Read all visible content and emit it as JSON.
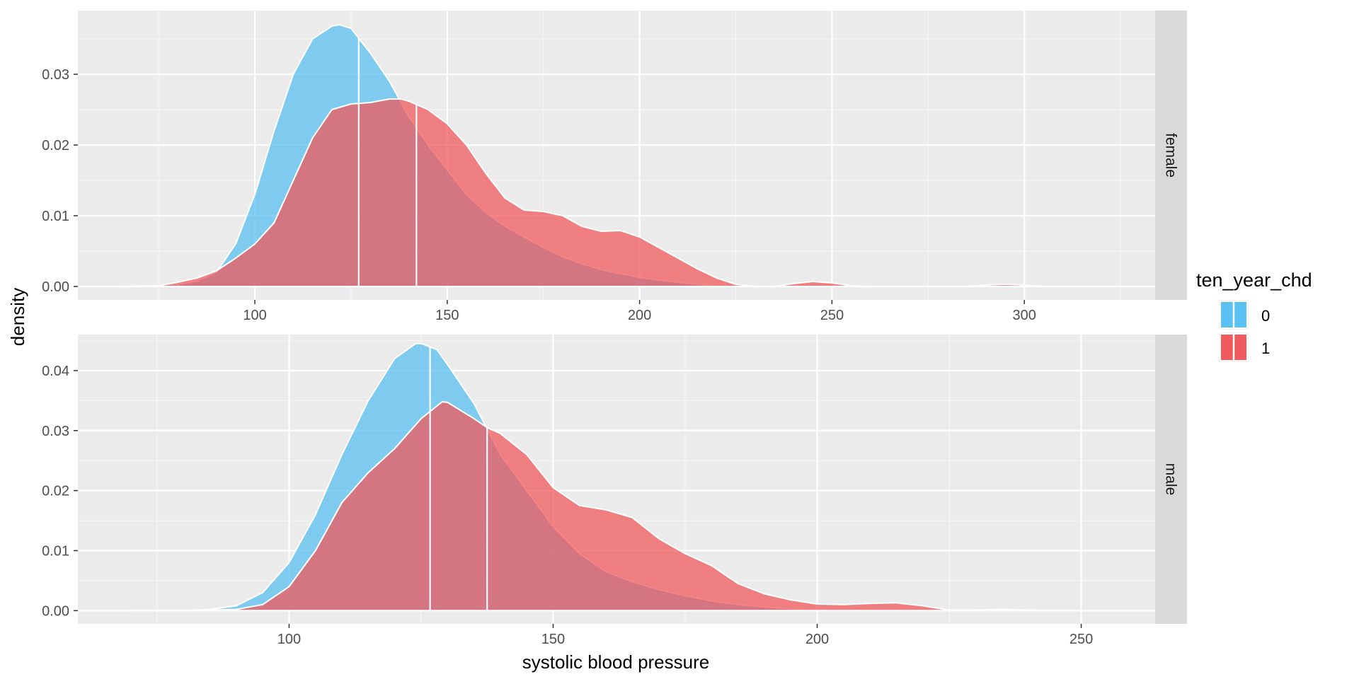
{
  "chart_data": {
    "type": "area",
    "xlabel": "systolic blood pressure",
    "ylabel": "density",
    "grid": true,
    "legend": {
      "title": "ten_year_chd",
      "position": "right",
      "entries": [
        {
          "label": "0",
          "color": "#5BC0F2"
        },
        {
          "label": "1",
          "color": "#F05A5E"
        }
      ]
    },
    "overlap_color": "#B46177",
    "panels": [
      {
        "strip": "female",
        "xlim": [
          54,
          334
        ],
        "ylim": [
          -0.0019,
          0.039
        ],
        "x_ticks": [
          100,
          150,
          200,
          250,
          300
        ],
        "y_ticks": [
          0.0,
          0.01,
          0.02,
          0.03
        ],
        "y_tick_labels": [
          "0.00",
          "0.01",
          "0.02",
          "0.03"
        ],
        "series": [
          {
            "name": "0",
            "mean_line": 127,
            "points": [
              [
                65,
                0
              ],
              [
                75,
                0.0001
              ],
              [
                80,
                0.0003
              ],
              [
                85,
                0.0008
              ],
              [
                90,
                0.002
              ],
              [
                95,
                0.006
              ],
              [
                100,
                0.013
              ],
              [
                105,
                0.022
              ],
              [
                110,
                0.03
              ],
              [
                115,
                0.035
              ],
              [
                120,
                0.0368
              ],
              [
                122,
                0.037
              ],
              [
                125,
                0.0365
              ],
              [
                130,
                0.033
              ],
              [
                135,
                0.029
              ],
              [
                140,
                0.024
              ],
              [
                145,
                0.02
              ],
              [
                150,
                0.0165
              ],
              [
                155,
                0.013
              ],
              [
                160,
                0.0105
              ],
              [
                165,
                0.0085
              ],
              [
                170,
                0.007
              ],
              [
                175,
                0.0055
              ],
              [
                180,
                0.0042
              ],
              [
                185,
                0.0032
              ],
              [
                190,
                0.0024
              ],
              [
                195,
                0.0018
              ],
              [
                200,
                0.0013
              ],
              [
                205,
                0.0009
              ],
              [
                210,
                0.0006
              ],
              [
                215,
                0.0003
              ],
              [
                220,
                0.0001
              ],
              [
                225,
                0
              ]
            ]
          },
          {
            "name": "1",
            "mean_line": 142,
            "points": [
              [
                65,
                0
              ],
              [
                75,
                0.0001
              ],
              [
                80,
                0.0006
              ],
              [
                85,
                0.0012
              ],
              [
                90,
                0.0022
              ],
              [
                95,
                0.004
              ],
              [
                100,
                0.006
              ],
              [
                105,
                0.009
              ],
              [
                110,
                0.015
              ],
              [
                115,
                0.021
              ],
              [
                120,
                0.025
              ],
              [
                125,
                0.0258
              ],
              [
                130,
                0.026
              ],
              [
                135,
                0.0265
              ],
              [
                138,
                0.0265
              ],
              [
                140,
                0.0262
              ],
              [
                145,
                0.025
              ],
              [
                150,
                0.023
              ],
              [
                155,
                0.02
              ],
              [
                160,
                0.016
              ],
              [
                165,
                0.0125
              ],
              [
                170,
                0.0108
              ],
              [
                175,
                0.0106
              ],
              [
                180,
                0.01
              ],
              [
                185,
                0.0085
              ],
              [
                190,
                0.0078
              ],
              [
                195,
                0.0079
              ],
              [
                200,
                0.007
              ],
              [
                205,
                0.0055
              ],
              [
                210,
                0.004
              ],
              [
                215,
                0.0025
              ],
              [
                220,
                0.0012
              ],
              [
                225,
                0.0003
              ],
              [
                230,
                0
              ],
              [
                235,
                0
              ],
              [
                240,
                0.0004
              ],
              [
                245,
                0.0007
              ],
              [
                250,
                0.0005
              ],
              [
                255,
                0.0001
              ],
              [
                260,
                0
              ],
              [
                285,
                0
              ],
              [
                290,
                0.0002
              ],
              [
                295,
                0.0003
              ],
              [
                300,
                0.0002
              ],
              [
                305,
                0
              ],
              [
                310,
                0
              ]
            ]
          }
        ]
      },
      {
        "strip": "male",
        "xlim": [
          60,
          264
        ],
        "ylim": [
          -0.0022,
          0.046
        ],
        "x_ticks": [
          100,
          150,
          200,
          250
        ],
        "y_ticks": [
          0.0,
          0.01,
          0.02,
          0.03,
          0.04
        ],
        "y_tick_labels": [
          "0.00",
          "0.01",
          "0.02",
          "0.03",
          "0.04"
        ],
        "series": [
          {
            "name": "0",
            "mean_line": 126.7,
            "points": [
              [
                70,
                0
              ],
              [
                80,
                0
              ],
              [
                85,
                0.0002
              ],
              [
                90,
                0.0008
              ],
              [
                95,
                0.003
              ],
              [
                100,
                0.008
              ],
              [
                105,
                0.016
              ],
              [
                110,
                0.026
              ],
              [
                115,
                0.035
              ],
              [
                120,
                0.042
              ],
              [
                124,
                0.0445
              ],
              [
                125,
                0.0445
              ],
              [
                128,
                0.0435
              ],
              [
                130,
                0.041
              ],
              [
                135,
                0.0345
              ],
              [
                140,
                0.026
              ],
              [
                145,
                0.02
              ],
              [
                150,
                0.014
              ],
              [
                155,
                0.0095
              ],
              [
                160,
                0.0065
              ],
              [
                165,
                0.0048
              ],
              [
                170,
                0.0035
              ],
              [
                175,
                0.0025
              ],
              [
                180,
                0.0016
              ],
              [
                185,
                0.001
              ],
              [
                190,
                0.0006
              ],
              [
                195,
                0.0003
              ],
              [
                200,
                0.0001
              ],
              [
                205,
                0
              ]
            ]
          },
          {
            "name": "1",
            "mean_line": 137.5,
            "points": [
              [
                70,
                0
              ],
              [
                80,
                0
              ],
              [
                90,
                0.0002
              ],
              [
                95,
                0.001
              ],
              [
                100,
                0.004
              ],
              [
                105,
                0.01
              ],
              [
                110,
                0.018
              ],
              [
                115,
                0.023
              ],
              [
                120,
                0.027
              ],
              [
                125,
                0.032
              ],
              [
                129,
                0.0348
              ],
              [
                130,
                0.0347
              ],
              [
                135,
                0.032
              ],
              [
                137.5,
                0.0305
              ],
              [
                140,
                0.0295
              ],
              [
                145,
                0.026
              ],
              [
                150,
                0.0205
              ],
              [
                155,
                0.0175
              ],
              [
                160,
                0.0168
              ],
              [
                165,
                0.0155
              ],
              [
                170,
                0.012
              ],
              [
                175,
                0.0095
              ],
              [
                180,
                0.0075
              ],
              [
                185,
                0.0045
              ],
              [
                190,
                0.0028
              ],
              [
                195,
                0.0018
              ],
              [
                200,
                0.0011
              ],
              [
                205,
                0.001
              ],
              [
                210,
                0.0012
              ],
              [
                215,
                0.0013
              ],
              [
                220,
                0.0008
              ],
              [
                225,
                0.0001
              ],
              [
                230,
                0.0001
              ],
              [
                235,
                0.0002
              ],
              [
                240,
                0.0001
              ],
              [
                245,
                0
              ],
              [
                250,
                0
              ]
            ]
          }
        ]
      }
    ]
  }
}
